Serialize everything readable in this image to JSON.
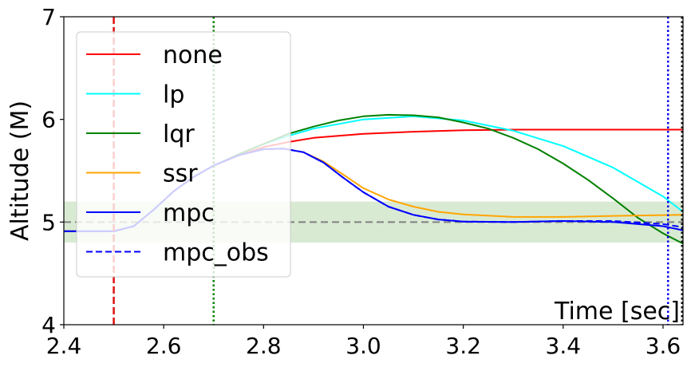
{
  "chart_data": {
    "type": "line",
    "xlabel": "Time [sec]",
    "ylabel": "Altitude (M)",
    "xlim": [
      2.4,
      3.64
    ],
    "ylim": [
      4,
      7
    ],
    "xticks": [
      "2.4",
      "2.6",
      "2.8",
      "3.0",
      "3.2",
      "3.4",
      "3.6"
    ],
    "yticks": [
      "4",
      "5",
      "6",
      "7"
    ],
    "grid": false,
    "legend_position": "top-left",
    "reference_line": {
      "y": 5.0,
      "color": "#808080",
      "style": "dashed"
    },
    "tolerance_band": {
      "y_min": 4.8,
      "y_max": 5.2,
      "color": "#d9ead3"
    },
    "event_lines": [
      {
        "x": 2.5,
        "color": "#e01010",
        "style": "dashed"
      },
      {
        "x": 2.7,
        "color": "#008000",
        "style": "dotted"
      },
      {
        "x": 3.61,
        "color": "#0000ee",
        "style": "dotted"
      },
      {
        "x": 3.638,
        "color": "#000000",
        "style": "dotted"
      }
    ],
    "pre_segment": {
      "color": "#000000",
      "x": [
        2.4,
        2.43
      ],
      "y": [
        4.91,
        4.91
      ]
    },
    "series": [
      {
        "name": "none",
        "color": "#ff0000",
        "style": "solid",
        "x": [
          2.4,
          2.5,
          2.54,
          2.58,
          2.62,
          2.66,
          2.7,
          2.75,
          2.8,
          2.85,
          2.9,
          3.0,
          3.1,
          3.2,
          3.3,
          3.4,
          3.5,
          3.64
        ],
        "y": [
          4.91,
          4.91,
          4.96,
          5.12,
          5.3,
          5.44,
          5.55,
          5.65,
          5.73,
          5.78,
          5.82,
          5.86,
          5.88,
          5.895,
          5.9,
          5.9,
          5.9,
          5.9
        ]
      },
      {
        "name": "lp",
        "color": "#00ffff",
        "style": "solid",
        "x": [
          2.4,
          2.5,
          2.54,
          2.58,
          2.62,
          2.66,
          2.7,
          2.75,
          2.8,
          2.85,
          2.9,
          3.0,
          3.1,
          3.2,
          3.3,
          3.4,
          3.5,
          3.6,
          3.64
        ],
        "y": [
          4.91,
          4.91,
          4.96,
          5.12,
          5.3,
          5.44,
          5.55,
          5.66,
          5.76,
          5.84,
          5.91,
          6.0,
          6.03,
          5.99,
          5.89,
          5.74,
          5.53,
          5.25,
          5.1
        ]
      },
      {
        "name": "lqr",
        "color": "#008000",
        "style": "solid",
        "x": [
          2.4,
          2.5,
          2.54,
          2.58,
          2.62,
          2.66,
          2.7,
          2.75,
          2.8,
          2.85,
          2.9,
          2.95,
          3.0,
          3.05,
          3.1,
          3.15,
          3.2,
          3.25,
          3.3,
          3.35,
          3.4,
          3.45,
          3.5,
          3.55,
          3.6,
          3.64
        ],
        "y": [
          4.91,
          4.91,
          4.96,
          5.12,
          5.3,
          5.44,
          5.55,
          5.66,
          5.76,
          5.86,
          5.93,
          5.99,
          6.03,
          6.045,
          6.04,
          6.02,
          5.97,
          5.91,
          5.82,
          5.71,
          5.57,
          5.41,
          5.23,
          5.04,
          4.89,
          4.79
        ]
      },
      {
        "name": "ssr",
        "color": "#ffa500",
        "style": "solid",
        "x": [
          2.4,
          2.5,
          2.54,
          2.58,
          2.62,
          2.66,
          2.7,
          2.75,
          2.8,
          2.84,
          2.88,
          2.92,
          2.96,
          3.0,
          3.05,
          3.1,
          3.15,
          3.2,
          3.3,
          3.4,
          3.5,
          3.64
        ],
        "y": [
          4.91,
          4.91,
          4.96,
          5.12,
          5.3,
          5.44,
          5.55,
          5.65,
          5.71,
          5.715,
          5.68,
          5.59,
          5.46,
          5.33,
          5.22,
          5.15,
          5.1,
          5.075,
          5.05,
          5.05,
          5.06,
          5.07
        ]
      },
      {
        "name": "mpc",
        "color": "#0000ff",
        "style": "solid",
        "x": [
          2.4,
          2.5,
          2.54,
          2.58,
          2.62,
          2.66,
          2.7,
          2.75,
          2.8,
          2.84,
          2.88,
          2.92,
          2.96,
          3.0,
          3.05,
          3.1,
          3.15,
          3.2,
          3.3,
          3.4,
          3.5,
          3.6,
          3.64
        ],
        "y": [
          4.91,
          4.91,
          4.96,
          5.12,
          5.3,
          5.44,
          5.55,
          5.65,
          5.71,
          5.715,
          5.68,
          5.58,
          5.43,
          5.29,
          5.15,
          5.07,
          5.025,
          5.005,
          5.0,
          5.01,
          5.0,
          4.96,
          4.92
        ]
      },
      {
        "name": "mpc_obs",
        "color": "#0000ff",
        "style": "dashed",
        "x": [
          2.4,
          2.5,
          2.54,
          2.58,
          2.62,
          2.66,
          2.7,
          2.75,
          2.8,
          2.84,
          2.88,
          2.92,
          2.96,
          3.0,
          3.05,
          3.1,
          3.15,
          3.2,
          3.3,
          3.4,
          3.5,
          3.6,
          3.64
        ],
        "y": [
          4.91,
          4.91,
          4.96,
          5.12,
          5.3,
          5.44,
          5.55,
          5.65,
          5.71,
          5.715,
          5.68,
          5.58,
          5.43,
          5.29,
          5.15,
          5.07,
          5.025,
          5.005,
          5.0,
          5.01,
          5.01,
          4.98,
          4.95
        ]
      }
    ]
  }
}
